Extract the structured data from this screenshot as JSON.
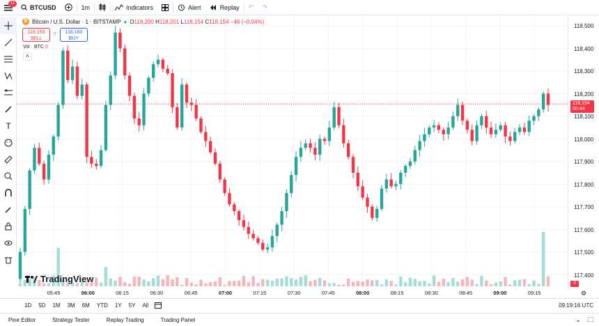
{
  "topbar": {
    "menu_badge": "11",
    "symbol": "BTCUSD",
    "interval": "1m",
    "indicators_label": "Indicators",
    "alert_label": "Alert",
    "replay_label": "Replay"
  },
  "legend": {
    "title": "Bitcoin / U.S. Dollar · 1 · BITSTAMP",
    "open": "118,200",
    "high": "118,201",
    "low": "118,154",
    "close": "118,154",
    "change": "−46 (−0.04%)",
    "sell_price": "118,153",
    "sell_label": "SELL",
    "spread": "7",
    "buy_price": "118,160",
    "buy_label": "BUY",
    "vol_label": "Vol · BTC",
    "vol_value": "0"
  },
  "price_axis": {
    "labels": [
      "118,500",
      "118,400",
      "118,300",
      "118,200",
      "118,100",
      "118,000",
      "117,900",
      "117,800",
      "117,700",
      "117,600",
      "117,500",
      "117,400"
    ],
    "current_price": "118,154",
    "countdown": "00:44",
    "vol_tag": "0"
  },
  "time_axis": {
    "labels": [
      "05:45",
      "06:00",
      "06:15",
      "06:30",
      "06:45",
      "07:00",
      "07:15",
      "07:30",
      "07:45",
      "08:00",
      "08:15",
      "08:30",
      "08:45",
      "09:00",
      "09:15"
    ],
    "bold": [
      "06:00",
      "07:00",
      "08:00",
      "09:00"
    ]
  },
  "range_bar": {
    "ranges": [
      "1D",
      "5D",
      "1M",
      "3M",
      "6M",
      "YTD",
      "1Y",
      "5Y",
      "All"
    ],
    "clock": "09:19:16 UTC"
  },
  "bottom_tabs": [
    "Pine Editor",
    "Strategy Tester",
    "Replay Trading",
    "Trading Panel"
  ],
  "brand": "TradingView",
  "colors": {
    "up": "#26a69a",
    "down": "#f23645",
    "accent": "#2962ff"
  },
  "chart_data": {
    "type": "candlestick",
    "y_range": [
      117350,
      118550
    ],
    "x_range": [
      "05:35",
      "09:20"
    ],
    "closes": [
      117500,
      117690,
      117860,
      117960,
      117890,
      117820,
      117930,
      118010,
      118150,
      118390,
      118260,
      118320,
      118190,
      118240,
      117920,
      117890,
      117880,
      117950,
      118150,
      118280,
      118470,
      118400,
      118280,
      118190,
      118090,
      118060,
      118200,
      118270,
      118330,
      118350,
      118310,
      118290,
      118140,
      118050,
      118240,
      118160,
      118150,
      118090,
      118030,
      117990,
      117940,
      117890,
      117820,
      117760,
      117710,
      117680,
      117640,
      117610,
      117580,
      117560,
      117540,
      117510,
      117520,
      117570,
      117620,
      117680,
      117760,
      117840,
      117920,
      117960,
      117980,
      117960,
      117930,
      118000,
      117990,
      118050,
      118140,
      118060,
      117980,
      117920,
      117850,
      117790,
      117740,
      117700,
      117650,
      117690,
      117780,
      117820,
      117790,
      117800,
      117850,
      117880,
      117900,
      117950,
      117990,
      118020,
      118050,
      118060,
      118040,
      118020,
      118050,
      118100,
      118150,
      118080,
      118040,
      117990,
      118060,
      118100,
      118050,
      118020,
      118040,
      118060,
      118010,
      117990,
      118030,
      118050,
      118030,
      118080,
      118100,
      118130,
      118200,
      118150
    ]
  }
}
